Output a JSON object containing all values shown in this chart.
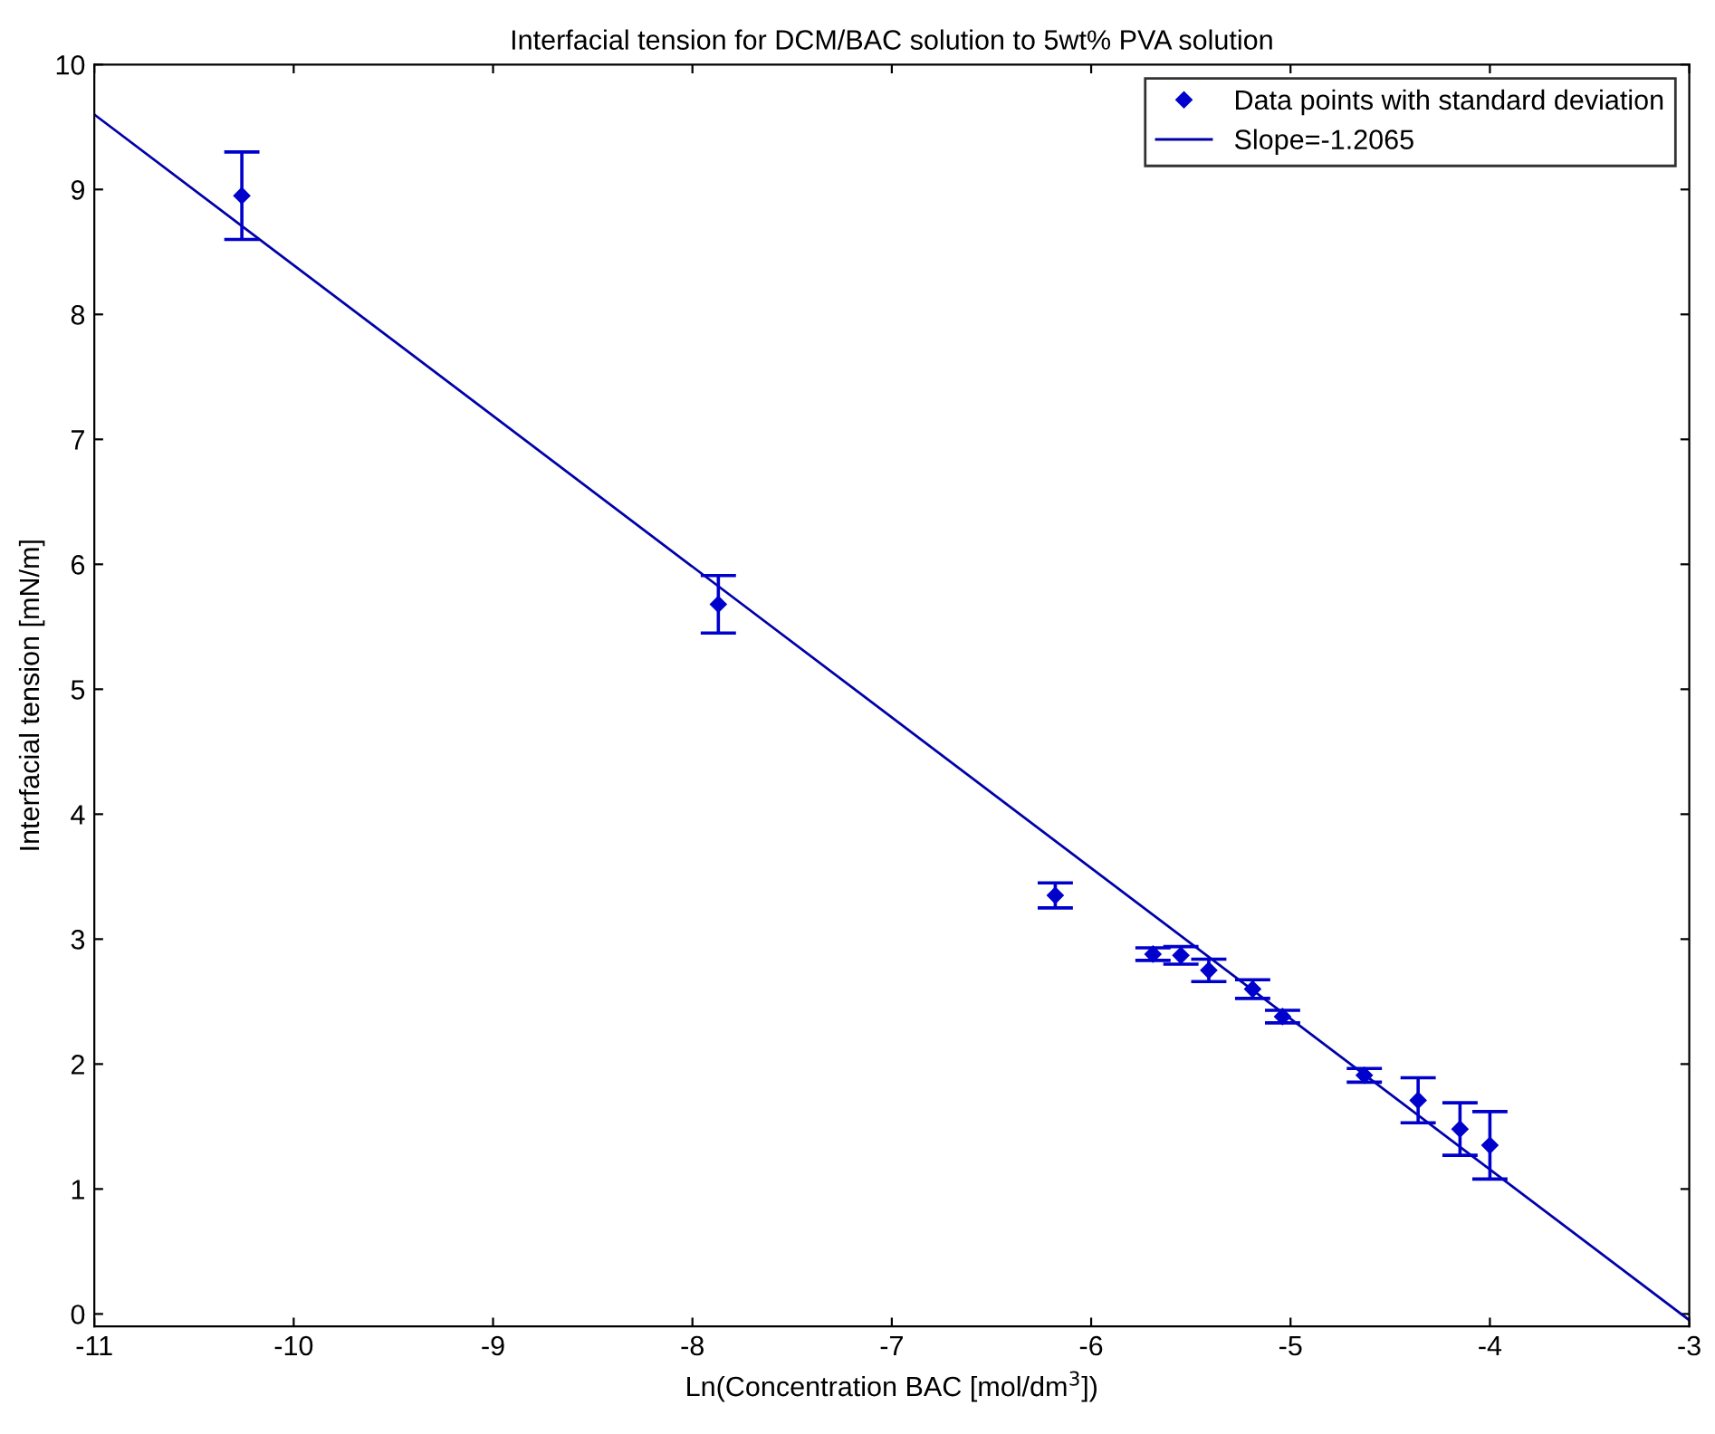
{
  "chart_data": {
    "type": "scatter",
    "title": "Interfacial tension for DCM/BAC solution to 5wt% PVA solution",
    "xlabel": "Ln(Concentration BAC [mol/dm$^{3}$])",
    "ylabel": "Interfacial tension [mN/m]",
    "series": [
      {
        "name": "Data points with standard deviation",
        "color": "#0000cc",
        "marker": "diamond",
        "x": [
          -10.26,
          -7.87,
          -6.18,
          -5.69,
          -5.55,
          -5.41,
          -5.19,
          -5.04,
          -4.63,
          -4.36,
          -4.15,
          -4.0
        ],
        "values": [
          8.95,
          5.68,
          3.35,
          2.88,
          2.87,
          2.75,
          2.6,
          2.38,
          1.91,
          1.71,
          1.48,
          1.35
        ],
        "errors": [
          0.35,
          0.23,
          0.1,
          0.05,
          0.07,
          0.09,
          0.075,
          0.05,
          0.055,
          0.18,
          0.21,
          0.27
        ]
      },
      {
        "name": "Slope=-1.2065",
        "type": "line",
        "color": "#0000aa",
        "line_style": "solid",
        "x": [
          -11,
          -3
        ],
        "values": [
          9.6,
          -0.05
        ]
      }
    ],
    "xlim": [
      -11,
      -3
    ],
    "xticks": [
      -11,
      -10,
      -9,
      -8,
      -7,
      -6,
      -5,
      -4,
      -3
    ],
    "ylim": [
      -0.1,
      10
    ],
    "yticks": [
      0,
      1,
      2,
      3,
      4,
      5,
      6,
      7,
      8,
      9,
      10
    ],
    "grid": false,
    "legend": "top right"
  }
}
